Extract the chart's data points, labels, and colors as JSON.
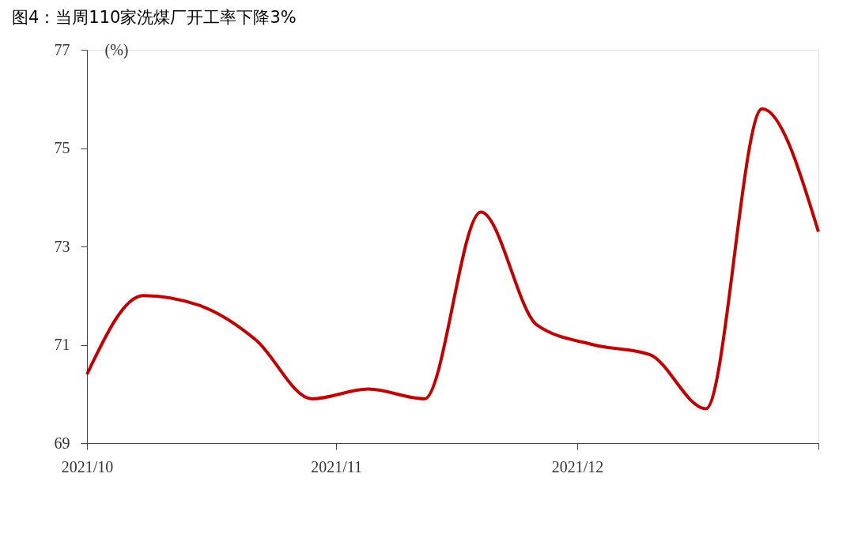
{
  "chart_data": {
    "type": "line",
    "title": "图4：当周110家洗煤厂开工率下降3%",
    "ylabel": "(%)",
    "x": [
      "2021-10-01",
      "2021-10-08",
      "2021-10-15",
      "2021-10-22",
      "2021-10-29",
      "2021-11-05",
      "2021-11-12",
      "2021-11-19",
      "2021-11-26",
      "2021-12-03",
      "2021-12-10",
      "2021-12-17",
      "2021-12-24",
      "2021-12-31"
    ],
    "series": [
      {
        "color": "#c00000",
        "values": [
          70.4,
          72.0,
          71.8,
          71.1,
          69.9,
          70.1,
          69.9,
          73.7,
          71.4,
          71.0,
          70.8,
          69.7,
          75.8,
          73.3
        ]
      }
    ],
    "xlim": [
      "2021-10-01",
      "2021-12-31"
    ],
    "xticks": [
      {
        "value": "2021-10-01",
        "label": "2021/10"
      },
      {
        "value": "2021-11-01",
        "label": "2021/11"
      },
      {
        "value": "2021-12-01",
        "label": "2021/12"
      },
      {
        "value": "2021-12-31",
        "label": null
      }
    ],
    "ylim": [
      69,
      77
    ],
    "yticks": [
      69,
      71,
      73,
      75,
      77
    ],
    "grid": false,
    "legend": false,
    "marker": "none",
    "line_style": "solid"
  }
}
